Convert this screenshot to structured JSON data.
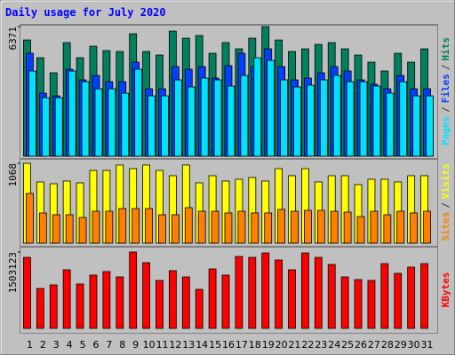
{
  "chart_data": {
    "type": "bar",
    "title": "Daily usage for July 2020",
    "categories": [
      "1",
      "2",
      "3",
      "4",
      "5",
      "6",
      "7",
      "8",
      "9",
      "10",
      "11",
      "12",
      "13",
      "14",
      "15",
      "16",
      "17",
      "18",
      "19",
      "20",
      "21",
      "22",
      "23",
      "24",
      "25",
      "26",
      "27",
      "28",
      "29",
      "30",
      "31"
    ],
    "weekend": [
      3,
      4,
      10,
      11,
      17,
      18,
      24,
      25
    ],
    "weekend_color": "#008080",
    "legend_separator": "/",
    "panels": [
      {
        "ylim": [
          0,
          6371
        ],
        "yticks": [
          6371
        ],
        "series": [
          {
            "name": "Pages",
            "color": "#00e0ff",
            "values": [
              4188,
              2879,
              2879,
              4188,
              3664,
              3315,
              3315,
              3097,
              4275,
              2966,
              2966,
              3752,
              3403,
              3839,
              3752,
              3446,
              3970,
              4842,
              4711,
              3752,
              3403,
              3490,
              3752,
              3970,
              3664,
              3664,
              3446,
              3097,
              3664,
              2966,
              2966
            ]
          },
          {
            "name": "Files",
            "color": "#0040ff",
            "values": [
              5060,
              3097,
              2966,
              4275,
              3752,
              3970,
              3664,
              3664,
              4624,
              3315,
              3315,
              4406,
              4275,
              4406,
              3839,
              4450,
              5060,
              4406,
              5278,
              4406,
              3752,
              3839,
              4101,
              4406,
              4188,
              3752,
              3533,
              3315,
              3970,
              3315,
              3315
            ]
          },
          {
            "name": "Hits",
            "color": "#00805c",
            "values": [
              5714,
              4842,
              4101,
              5584,
              4842,
              5409,
              5191,
              5148,
              6020,
              5148,
              4973,
              6151,
              5802,
              5933,
              5060,
              5584,
              5278,
              5802,
              6371,
              5714,
              5148,
              5278,
              5497,
              5584,
              5278,
              4973,
              4624,
              4188,
              5060,
              4624,
              5278
            ]
          }
        ]
      },
      {
        "ylim": [
          0,
          1068
        ],
        "yticks": [
          1068
        ],
        "series": [
          {
            "name": "Sites",
            "color": "#ff8000",
            "values": [
              665,
              404,
              380,
              380,
              344,
              427,
              427,
              463,
              463,
              463,
              380,
              380,
              475,
              427,
              427,
              404,
              427,
              404,
              404,
              451,
              427,
              439,
              439,
              427,
              415,
              356,
              427,
              380,
              427,
              404,
              427
            ]
          },
          {
            "name": "Visits",
            "color": "#ffff00",
            "values": [
              1068,
              819,
              795,
              831,
              807,
              973,
              973,
              1045,
              997,
              1045,
              973,
              902,
              1045,
              807,
              902,
              831,
              855,
              878,
              831,
              997,
              902,
              997,
              819,
              902,
              902,
              783,
              855,
              855,
              819,
              902,
              902
            ]
          }
        ]
      },
      {
        "ylim": [
          0,
          1503123
        ],
        "yticks": [
          1503123
        ],
        "series": [
          {
            "name": "KBytes",
            "color": "#ff0000",
            "values": [
              1398242,
              786510,
              856422,
              1153548,
              873900,
              1048680,
              1118592,
              1013724,
              1503123,
              1293372,
              943812,
              1136070,
              1013724,
              769032,
              1171026,
              1048680,
              1415718,
              1398242,
              1485630,
              1345806,
              1153548,
              1485630,
              1398242,
              1258416,
              1013724,
              961290,
              943812,
              1275894,
              1083636,
              1205982,
              1275894
            ]
          }
        ]
      }
    ]
  }
}
